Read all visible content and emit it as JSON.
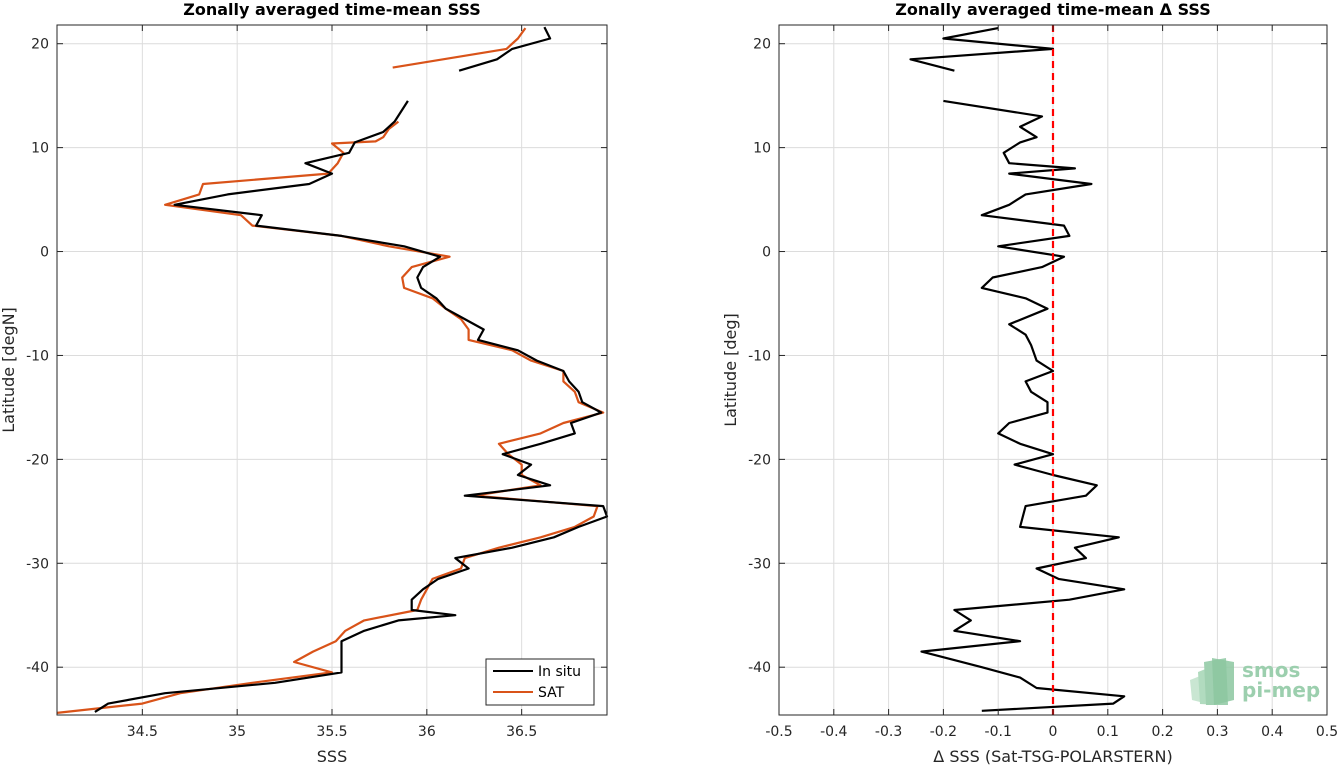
{
  "colors": {
    "insitu": "#000000",
    "sat": "#d95319",
    "zero_line": "#ff0000",
    "grid": "#dcdcdc",
    "axis": "#262626"
  },
  "logo": {
    "line1": "smos",
    "line2": "pi-mep"
  },
  "chart_data": [
    {
      "type": "line",
      "orientation": "x-value-y-latitude",
      "title": "Zonally averaged time-mean SSS",
      "xlabel": "SSS",
      "ylabel": "Latitude [degN]",
      "xlim": [
        34.05,
        36.95
      ],
      "ylim": [
        -44.6,
        21.8
      ],
      "xticks": [
        34.5,
        35,
        35.5,
        36,
        36.5
      ],
      "yticks": [
        20,
        10,
        0,
        -10,
        -20,
        -30,
        -40
      ],
      "grid": true,
      "legend_position": "bottom-right",
      "series": [
        {
          "name": "In situ",
          "color_key": "insitu",
          "segments": [
            [
              [
                36.62,
                21.6
              ],
              [
                36.65,
                20.5
              ],
              [
                36.45,
                19.5
              ],
              [
                36.37,
                18.5
              ],
              [
                36.17,
                17.4
              ]
            ],
            [
              [
                35.9,
                14.5
              ],
              [
                35.83,
                12.5
              ],
              [
                35.77,
                11.5
              ],
              [
                35.62,
                10.5
              ],
              [
                35.59,
                9.5
              ],
              [
                35.36,
                8.5
              ],
              [
                35.5,
                7.5
              ],
              [
                35.38,
                6.5
              ],
              [
                34.95,
                5.5
              ],
              [
                34.67,
                4.5
              ],
              [
                35.13,
                3.5
              ],
              [
                35.1,
                2.5
              ],
              [
                35.55,
                1.5
              ],
              [
                35.88,
                0.5
              ],
              [
                36.07,
                -0.5
              ],
              [
                35.98,
                -1.5
              ],
              [
                35.95,
                -2.5
              ],
              [
                35.97,
                -3.5
              ],
              [
                36.05,
                -4.5
              ],
              [
                36.1,
                -5.5
              ],
              [
                36.2,
                -6.5
              ],
              [
                36.3,
                -7.5
              ],
              [
                36.27,
                -8.5
              ],
              [
                36.48,
                -9.5
              ],
              [
                36.58,
                -10.5
              ],
              [
                36.72,
                -11.5
              ],
              [
                36.75,
                -12.5
              ],
              [
                36.8,
                -13.5
              ],
              [
                36.82,
                -14.5
              ],
              [
                36.92,
                -15.5
              ],
              [
                36.76,
                -16.5
              ],
              [
                36.78,
                -17.5
              ],
              [
                36.6,
                -18.5
              ],
              [
                36.4,
                -19.5
              ],
              [
                36.55,
                -20.5
              ],
              [
                36.48,
                -21.5
              ],
              [
                36.65,
                -22.5
              ],
              [
                36.2,
                -23.5
              ],
              [
                36.93,
                -24.5
              ],
              [
                36.95,
                -25.5
              ],
              [
                36.8,
                -26.5
              ],
              [
                36.67,
                -27.5
              ],
              [
                36.45,
                -28.5
              ],
              [
                36.15,
                -29.5
              ],
              [
                36.22,
                -30.5
              ],
              [
                36.06,
                -31.5
              ],
              [
                35.98,
                -32.5
              ],
              [
                35.92,
                -33.5
              ],
              [
                35.92,
                -34.5
              ],
              [
                36.15,
                -35.0
              ],
              [
                35.85,
                -35.5
              ],
              [
                35.67,
                -36.5
              ],
              [
                35.55,
                -37.5
              ],
              [
                35.55,
                -38.5
              ],
              [
                35.55,
                -39.5
              ],
              [
                35.55,
                -40.5
              ],
              [
                35.2,
                -41.5
              ],
              [
                34.62,
                -42.5
              ],
              [
                34.32,
                -43.5
              ],
              [
                34.25,
                -44.3
              ]
            ]
          ]
        },
        {
          "name": "SAT",
          "color_key": "sat",
          "segments": [
            [
              [
                36.52,
                21.5
              ],
              [
                36.48,
                20.5
              ],
              [
                36.42,
                19.5
              ],
              [
                35.82,
                17.7
              ]
            ],
            [
              [
                35.85,
                12.5
              ],
              [
                35.8,
                11.8
              ],
              [
                35.77,
                11.0
              ],
              [
                35.73,
                10.6
              ],
              [
                35.5,
                10.4
              ],
              [
                35.56,
                9.5
              ],
              [
                35.53,
                8.5
              ],
              [
                35.48,
                7.5
              ],
              [
                34.82,
                6.5
              ],
              [
                34.8,
                5.5
              ],
              [
                34.62,
                4.5
              ],
              [
                35.02,
                3.5
              ],
              [
                35.08,
                2.5
              ],
              [
                35.55,
                1.5
              ],
              [
                35.8,
                0.5
              ],
              [
                36.12,
                -0.5
              ],
              [
                35.92,
                -1.5
              ],
              [
                35.87,
                -2.5
              ],
              [
                35.88,
                -3.5
              ],
              [
                36.03,
                -4.5
              ],
              [
                36.1,
                -5.5
              ],
              [
                36.18,
                -6.5
              ],
              [
                36.22,
                -7.5
              ],
              [
                36.22,
                -8.5
              ],
              [
                36.45,
                -9.5
              ],
              [
                36.55,
                -10.5
              ],
              [
                36.72,
                -11.5
              ],
              [
                36.72,
                -12.5
              ],
              [
                36.78,
                -13.5
              ],
              [
                36.8,
                -14.5
              ],
              [
                36.93,
                -15.5
              ],
              [
                36.72,
                -16.5
              ],
              [
                36.6,
                -17.5
              ],
              [
                36.38,
                -18.5
              ],
              [
                36.43,
                -19.5
              ],
              [
                36.5,
                -20.5
              ],
              [
                36.5,
                -21.5
              ],
              [
                36.6,
                -22.5
              ],
              [
                36.25,
                -23.5
              ],
              [
                36.9,
                -24.5
              ],
              [
                36.88,
                -25.5
              ],
              [
                36.78,
                -26.5
              ],
              [
                36.6,
                -27.5
              ],
              [
                36.38,
                -28.5
              ],
              [
                36.2,
                -29.5
              ],
              [
                36.18,
                -30.5
              ],
              [
                36.03,
                -31.5
              ],
              [
                36.0,
                -32.5
              ],
              [
                35.97,
                -33.5
              ],
              [
                35.95,
                -34.5
              ],
              [
                35.67,
                -35.5
              ],
              [
                35.57,
                -36.5
              ],
              [
                35.52,
                -37.5
              ],
              [
                35.4,
                -38.5
              ],
              [
                35.3,
                -39.5
              ],
              [
                35.5,
                -40.5
              ],
              [
                35.08,
                -41.5
              ],
              [
                34.7,
                -42.5
              ],
              [
                34.5,
                -43.5
              ],
              [
                34.05,
                -44.4
              ]
            ]
          ]
        }
      ]
    },
    {
      "type": "line",
      "orientation": "x-value-y-latitude",
      "title": "Zonally averaged time-mean Δ SSS",
      "xlabel": "Δ SSS (Sat-TSG-POLARSTERN)",
      "ylabel": "Latitude [deg]",
      "xlim": [
        -0.5,
        0.5
      ],
      "ylim": [
        -44.6,
        21.8
      ],
      "xticks": [
        -0.5,
        -0.4,
        -0.3,
        -0.2,
        -0.1,
        0,
        0.1,
        0.2,
        0.3,
        0.4,
        0.5
      ],
      "xtick_labels": [
        "-0.5",
        "-0.4",
        "-0.3",
        "-0.2",
        "-0.1",
        "0",
        "0.1",
        "0.2",
        "0.3",
        "0.4",
        "0.5"
      ],
      "yticks": [
        20,
        10,
        0,
        -10,
        -20,
        -30,
        -40
      ],
      "grid": true,
      "reference_line": {
        "x": 0,
        "style": "dashed",
        "color_key": "zero_line"
      },
      "series": [
        {
          "color_key": "insitu",
          "segments": [
            [
              [
                -0.1,
                21.5
              ],
              [
                -0.2,
                20.5
              ],
              [
                0.0,
                19.5
              ],
              [
                -0.26,
                18.5
              ],
              [
                -0.18,
                17.4
              ]
            ],
            [
              [
                -0.2,
                14.5
              ],
              [
                -0.02,
                13.0
              ],
              [
                -0.06,
                12.0
              ],
              [
                -0.03,
                11.0
              ],
              [
                -0.06,
                10.5
              ],
              [
                -0.09,
                9.5
              ],
              [
                -0.08,
                8.5
              ],
              [
                0.04,
                8.0
              ],
              [
                -0.08,
                7.5
              ],
              [
                0.07,
                6.5
              ],
              [
                -0.05,
                5.5
              ],
              [
                -0.08,
                4.5
              ],
              [
                -0.13,
                3.5
              ],
              [
                0.02,
                2.5
              ],
              [
                0.03,
                1.5
              ],
              [
                -0.1,
                0.5
              ],
              [
                0.02,
                -0.5
              ],
              [
                -0.02,
                -1.5
              ],
              [
                -0.11,
                -2.5
              ],
              [
                -0.13,
                -3.5
              ],
              [
                -0.05,
                -4.5
              ],
              [
                -0.01,
                -5.5
              ],
              [
                -0.08,
                -7.0
              ],
              [
                -0.05,
                -8.0
              ],
              [
                -0.04,
                -9.0
              ],
              [
                -0.03,
                -10.5
              ],
              [
                0.0,
                -11.5
              ],
              [
                -0.05,
                -12.5
              ],
              [
                -0.04,
                -13.5
              ],
              [
                -0.01,
                -14.5
              ],
              [
                -0.01,
                -15.5
              ],
              [
                -0.08,
                -16.5
              ],
              [
                -0.1,
                -17.5
              ],
              [
                -0.06,
                -18.5
              ],
              [
                0.0,
                -19.5
              ],
              [
                -0.07,
                -20.5
              ],
              [
                0.0,
                -21.5
              ],
              [
                0.08,
                -22.5
              ],
              [
                0.06,
                -23.5
              ],
              [
                -0.05,
                -24.5
              ],
              [
                -0.06,
                -26.5
              ],
              [
                0.12,
                -27.5
              ],
              [
                0.04,
                -28.5
              ],
              [
                0.06,
                -29.5
              ],
              [
                -0.03,
                -30.5
              ],
              [
                0.01,
                -31.5
              ],
              [
                0.13,
                -32.5
              ],
              [
                0.03,
                -33.5
              ],
              [
                -0.18,
                -34.5
              ],
              [
                -0.15,
                -35.5
              ],
              [
                -0.18,
                -36.5
              ],
              [
                -0.06,
                -37.5
              ],
              [
                -0.24,
                -38.5
              ],
              [
                -0.13,
                -40.0
              ],
              [
                -0.06,
                -41.0
              ],
              [
                -0.03,
                -42.0
              ],
              [
                0.13,
                -42.8
              ],
              [
                0.11,
                -43.5
              ],
              [
                -0.13,
                -44.2
              ]
            ]
          ]
        }
      ]
    }
  ],
  "legend": [
    {
      "label": "In situ",
      "color_key": "insitu"
    },
    {
      "label": "SAT",
      "color_key": "sat"
    }
  ]
}
